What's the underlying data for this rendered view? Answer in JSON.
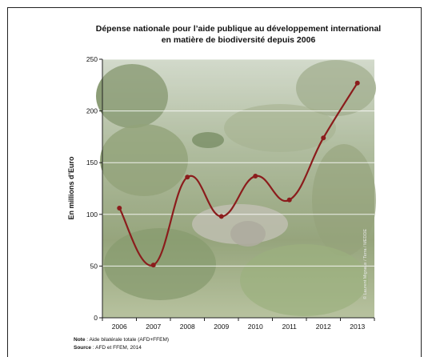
{
  "chart_data": {
    "type": "line",
    "title_line1": "Dépense nationale pour l’aide publique au développement international",
    "title_line2": "en matière de biodiversité depuis 2006",
    "ylabel": "En millions d’Euro",
    "xlabel": "",
    "x": [
      "2006",
      "2007",
      "2008",
      "2009",
      "2010",
      "2011",
      "2012",
      "2013"
    ],
    "series": [
      {
        "values": [
          106,
          51,
          136,
          98,
          137,
          114,
          174,
          227
        ]
      }
    ],
    "ylim": [
      0,
      250
    ],
    "yticks": [
      0,
      50,
      100,
      150,
      200,
      250
    ],
    "grid": "horizontal",
    "legend": "none",
    "line_color": "#8b1c1c",
    "background": "photo of green terraced hillside with palm trees and stone ruins",
    "photo_credit": "© Laurent Mignaux / Terra / MEDDE"
  },
  "footnote": {
    "note_label": "Note",
    "note_text": " : Aide bilatérale totale (AFD+FFEM)",
    "source_label": "Source",
    "source_text": " : AFD et FFEM, 2014"
  }
}
